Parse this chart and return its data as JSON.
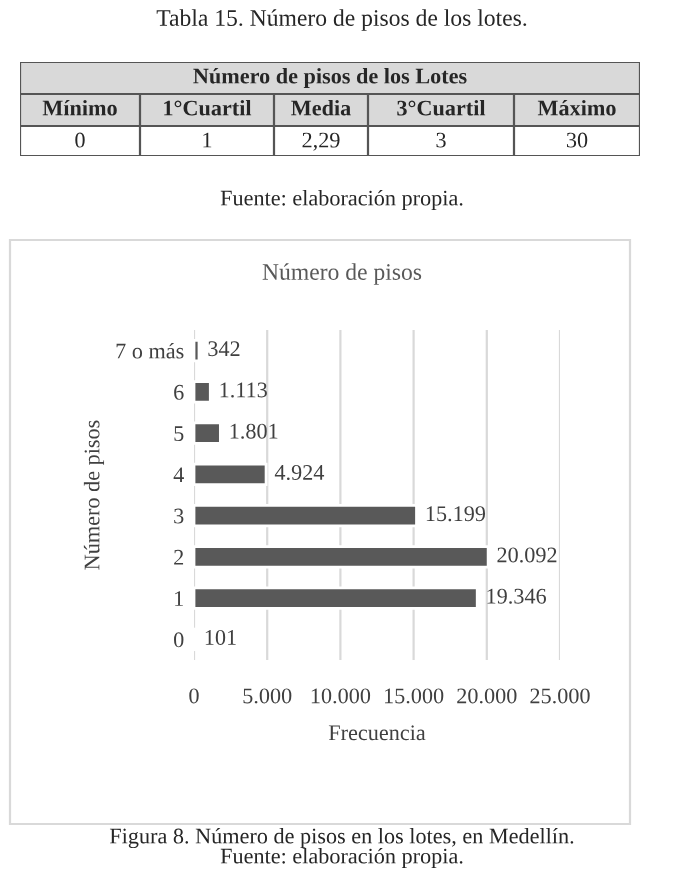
{
  "chart_data": [
    {
      "type": "other",
      "title": "Tabla 15. Número de pisos de los lotes.",
      "annotations": [
        "Número de pisos de los Lotes",
        "Mínimo",
        "1°Cuartil",
        "Media",
        "3°Cuartil",
        "Máximo",
        "0",
        "1",
        "2,29",
        "3",
        "30",
        "Fuente: elaboración propia."
      ]
    },
    {
      "type": "bar",
      "orientation": "horizontal",
      "title": "Número de pisos",
      "xlabel": "Frecuencia",
      "ylabel": "Número de pisos",
      "categories": [
        "7 o más",
        "6",
        "5",
        "4",
        "3",
        "2",
        "1",
        "0"
      ],
      "values": [
        342,
        1113,
        1801,
        4924,
        15199,
        20092,
        19346,
        101
      ],
      "value_labels": [
        "342",
        "1.113",
        "1.801",
        "4.924",
        "15.199",
        "20.092",
        "19.346",
        "101"
      ],
      "color": "#595959",
      "xlim": [
        0,
        25000
      ],
      "xticks": [
        0,
        {
          "value": 5000,
          "label": "5.000"
        },
        {
          "value": 10000,
          "label": "10.000"
        },
        {
          "value": 15000,
          "label": "15.000"
        },
        {
          "value": 20000,
          "label": "20.000"
        },
        {
          "value": 25000,
          "label": "25.000"
        }
      ],
      "grid": "x",
      "legend": false,
      "annotations": [
        "Figura 8. Número de pisos en los lotes, en Medellín.",
        "Fuente: elaboración propia."
      ]
    }
  ]
}
